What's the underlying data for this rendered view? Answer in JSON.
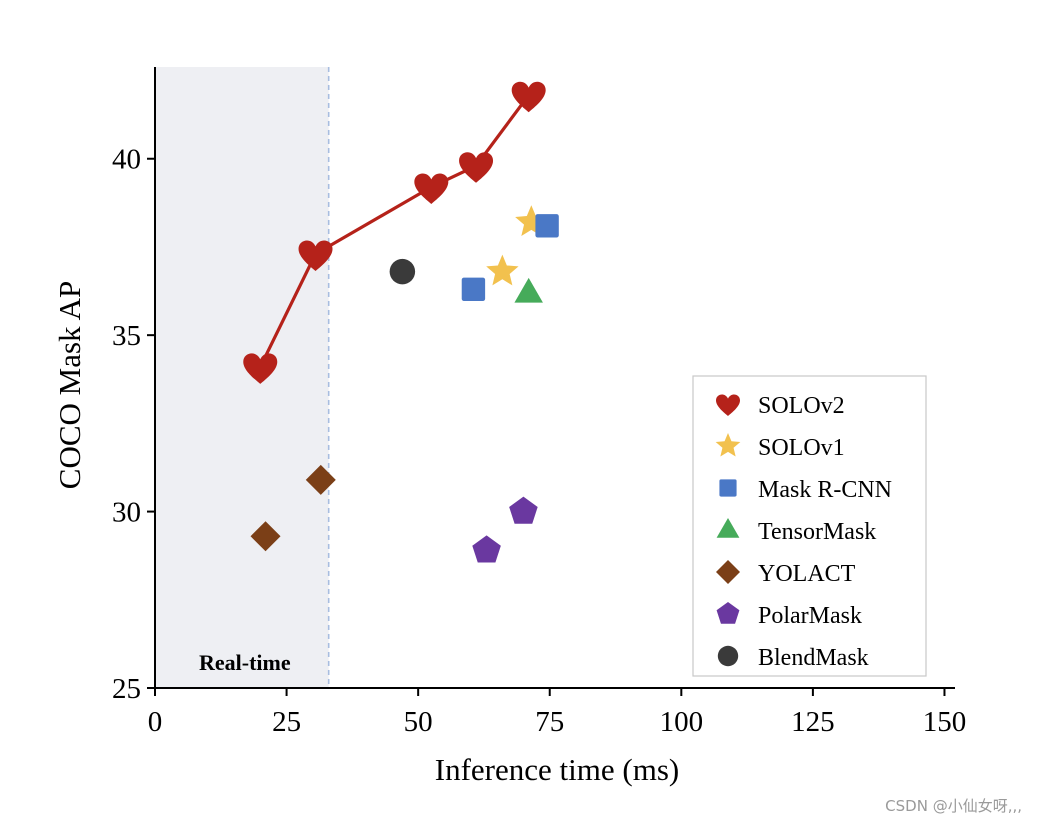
{
  "chart_data": {
    "type": "scatter",
    "xlabel": "Inference time (ms)",
    "ylabel": "COCO Mask AP",
    "xlim": [
      0,
      152
    ],
    "ylim": [
      25,
      42.6
    ],
    "xticks": [
      "0",
      "25",
      "50",
      "75",
      "100",
      "125",
      "150"
    ],
    "yticks": [
      "25",
      "30",
      "35",
      "40"
    ],
    "xtick_values": [
      0,
      25,
      50,
      75,
      100,
      125,
      150
    ],
    "ytick_values": [
      25,
      30,
      35,
      40
    ],
    "realtime_region": {
      "label": "Real-time",
      "x_max": 33
    },
    "series": [
      {
        "name": "SOLOv2",
        "marker": "heart",
        "color": "#b5221a",
        "line": true,
        "points": [
          [
            20,
            34.1
          ],
          [
            30.5,
            37.3
          ],
          [
            52.5,
            39.2
          ],
          [
            61,
            39.8
          ],
          [
            71,
            41.8
          ]
        ]
      },
      {
        "name": "SOLOv1",
        "marker": "star",
        "color": "#f2c14e",
        "points": [
          [
            66,
            36.8
          ],
          [
            71.5,
            38.2
          ]
        ]
      },
      {
        "name": "Mask R-CNN",
        "marker": "square",
        "color": "#4a78c6",
        "points": [
          [
            60.5,
            36.3
          ],
          [
            74.5,
            38.1
          ]
        ]
      },
      {
        "name": "TensorMask",
        "marker": "triangle",
        "color": "#46ab5a",
        "points": [
          [
            71,
            36.2
          ]
        ]
      },
      {
        "name": "YOLACT",
        "marker": "diamond",
        "color": "#7b3f17",
        "points": [
          [
            21,
            29.3
          ],
          [
            31.5,
            30.9
          ]
        ]
      },
      {
        "name": "PolarMask",
        "marker": "pentagon",
        "color": "#6a38a0",
        "points": [
          [
            63,
            28.9
          ],
          [
            70,
            30.0
          ]
        ]
      },
      {
        "name": "BlendMask",
        "marker": "circle",
        "color": "#3a3a3a",
        "points": [
          [
            47,
            36.8
          ]
        ]
      }
    ],
    "legend_position": "lower-right"
  },
  "watermark": "CSDN @小仙女呀,,,"
}
